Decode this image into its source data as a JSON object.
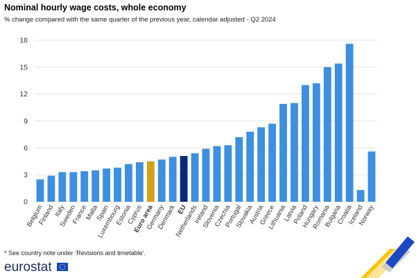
{
  "header": {
    "title": "Nominal hourly wage costs, whole economy",
    "subtitle": "% change compared with the same quarter of the previous year, calendar adjusted - Q2 2024"
  },
  "footer": {
    "note": "* See country note under ‘Revisions and timetable’.",
    "logo": "eurostat",
    "flag_icon": "eu-flag-icon"
  },
  "colors": {
    "bar": "#3d8fe0",
    "euro_area": "#d4a017",
    "eu": "#0d2a7a",
    "grid": "#e3e3e3",
    "axis_text": "#333333"
  },
  "chart_data": {
    "type": "bar",
    "categories": [
      "Belgium",
      "Finland",
      "Italy",
      "Sweden",
      "France",
      "Malta",
      "Spain",
      "Luxembourg",
      "Estonia",
      "Cyprus",
      "Euro area",
      "Germany",
      "Denmark",
      "EU",
      "Netherlands",
      "Ireland",
      "Slovenia",
      "Czechia",
      "Portugal",
      "Slovakia",
      "Austria",
      "Greece",
      "Lithuania",
      "Latvia",
      "Poland",
      "Hungary",
      "Romania",
      "Bulgaria",
      "Croatia",
      "Iceland",
      "Norway"
    ],
    "values": [
      2.5,
      2.9,
      3.3,
      3.3,
      3.4,
      3.5,
      3.7,
      3.8,
      4.2,
      4.4,
      4.5,
      4.7,
      5.0,
      5.1,
      5.4,
      5.9,
      6.2,
      6.3,
      7.2,
      7.8,
      8.3,
      8.7,
      10.9,
      11.0,
      13.0,
      13.2,
      15.0,
      15.4,
      17.6,
      1.3,
      5.6
    ],
    "highlight": {
      "Euro area": "euro_area",
      "EU": "eu"
    },
    "bold_categories": [
      "Euro area",
      "EU"
    ],
    "yticks": [
      0,
      3,
      6,
      9,
      12,
      15,
      18
    ],
    "ylim": [
      0,
      18
    ],
    "grid": true,
    "legend": "none"
  }
}
